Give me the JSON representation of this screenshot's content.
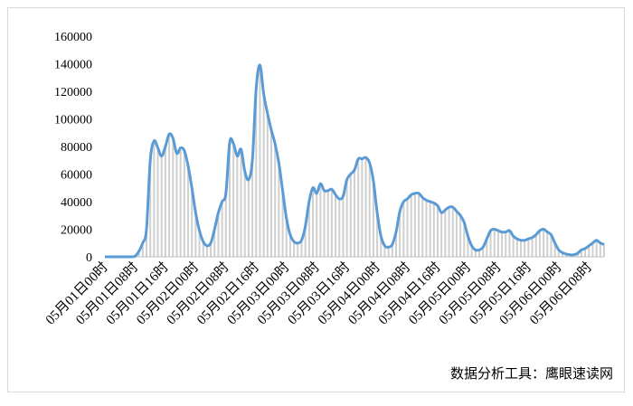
{
  "chart_data": {
    "type": "line",
    "categories": [
      "05月01日00时",
      null,
      null,
      null,
      null,
      null,
      null,
      null,
      "05月01日08时",
      null,
      null,
      null,
      null,
      null,
      null,
      null,
      "05月01日16时",
      null,
      null,
      null,
      null,
      null,
      null,
      null,
      "05月02日00时",
      null,
      null,
      null,
      null,
      null,
      null,
      null,
      "05月02日08时",
      null,
      null,
      null,
      null,
      null,
      null,
      null,
      "05月02日16时",
      null,
      null,
      null,
      null,
      null,
      null,
      null,
      "05月03日00时",
      null,
      null,
      null,
      null,
      null,
      null,
      null,
      "05月03日08时",
      null,
      null,
      null,
      null,
      null,
      null,
      null,
      "05月03日16时",
      null,
      null,
      null,
      null,
      null,
      null,
      null,
      "05月04日00时",
      null,
      null,
      null,
      null,
      null,
      null,
      null,
      "05月04日08时",
      null,
      null,
      null,
      null,
      null,
      null,
      null,
      "05月04日16时",
      null,
      null,
      null,
      null,
      null,
      null,
      null,
      "05月05日00时",
      null,
      null,
      null,
      null,
      null,
      null,
      null,
      "05月05日08时",
      null,
      null,
      null,
      null,
      null,
      null,
      null,
      "05月05日16时",
      null,
      null,
      null,
      null,
      null,
      null,
      null,
      "05月06日00时",
      null,
      null,
      null,
      null,
      null,
      null,
      null,
      "05月06日08时",
      null,
      null,
      null,
      null
    ],
    "values": [
      0,
      0,
      0,
      0,
      0,
      0,
      0,
      0,
      500,
      4000,
      10000,
      20000,
      70000,
      84000,
      79000,
      73000,
      80000,
      89000,
      86000,
      75000,
      79000,
      77000,
      66000,
      50000,
      32000,
      19000,
      11000,
      8000,
      10000,
      20000,
      32000,
      40000,
      46000,
      83000,
      82000,
      73000,
      78000,
      62000,
      56000,
      70000,
      122000,
      139000,
      118000,
      104000,
      92000,
      82000,
      68000,
      48000,
      28000,
      16000,
      11000,
      10000,
      12000,
      22000,
      40000,
      50000,
      46000,
      53000,
      48000,
      48000,
      49000,
      45000,
      42000,
      44000,
      56000,
      60000,
      63000,
      71000,
      71000,
      72000,
      68000,
      55000,
      32000,
      15000,
      8000,
      7000,
      9000,
      18000,
      33000,
      40000,
      42000,
      45000,
      46000,
      46000,
      43000,
      41000,
      40000,
      39000,
      37000,
      32000,
      34000,
      36000,
      36000,
      33000,
      30000,
      25000,
      15000,
      8000,
      5000,
      5000,
      7000,
      13000,
      19000,
      20000,
      19000,
      18000,
      18000,
      19000,
      15000,
      13000,
      12000,
      12000,
      13000,
      14000,
      16000,
      19000,
      20000,
      18000,
      16000,
      10000,
      5000,
      3000,
      2000,
      1500,
      1500,
      2500,
      5000,
      6000,
      8000,
      10000,
      12000,
      10000,
      9000
    ],
    "color": "#5b9bd5",
    "ylim": [
      0,
      160000
    ],
    "yticks": [
      0,
      20000,
      40000,
      60000,
      80000,
      100000,
      120000,
      140000,
      160000
    ],
    "source": "数据分析工具：鹰眼速读网"
  }
}
